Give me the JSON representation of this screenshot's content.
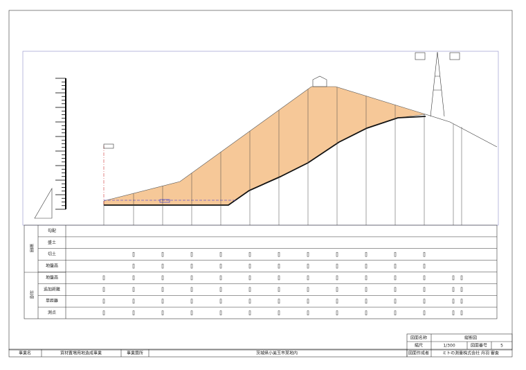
{
  "table": {
    "group_labels": [
      "断面",
      "計画"
    ],
    "row_labels": [
      "勾配",
      "盛土",
      "切土",
      "地盤高",
      "地盤高",
      "追加距離",
      "単距離",
      "測点"
    ]
  },
  "title_block": {
    "drawing_name_label": "図面名称",
    "drawing_name": "縦断図",
    "scale_label": "縮尺",
    "scale": "1/300",
    "number_label": "図面番号",
    "number": "5",
    "author_label": "図面作成者",
    "author": "ミトの測量株式会社 丹羽 審査"
  },
  "footer": {
    "project_label": "事業名",
    "project": "資材置場用地造成事業",
    "site_label": "事業箇所",
    "site": "茨城県小美玉市某地内"
  }
}
